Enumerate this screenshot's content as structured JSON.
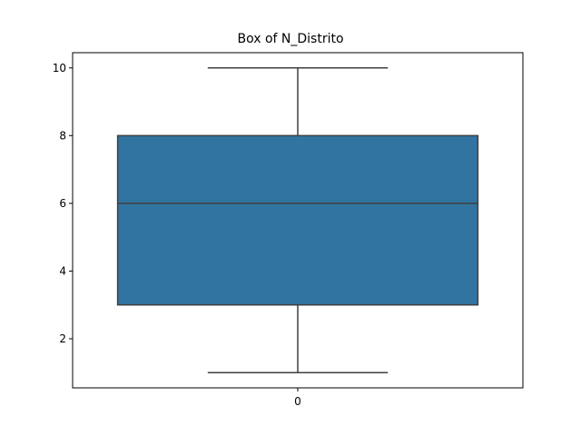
{
  "chart_data": {
    "type": "box",
    "title": "Box of N_Distrito",
    "xlabel": "",
    "ylabel": "",
    "categories": [
      "0"
    ],
    "boxes": [
      {
        "category": "0",
        "min": 1,
        "q1": 3,
        "median": 6,
        "q3": 8,
        "max": 10
      }
    ],
    "yticks": [
      2,
      4,
      6,
      8,
      10
    ],
    "ylim": [
      0.55,
      10.45
    ],
    "grid": false,
    "colors": {
      "box_fill": "#3274a1",
      "box_line": "#3f3f3f",
      "axis": "#000000"
    }
  }
}
